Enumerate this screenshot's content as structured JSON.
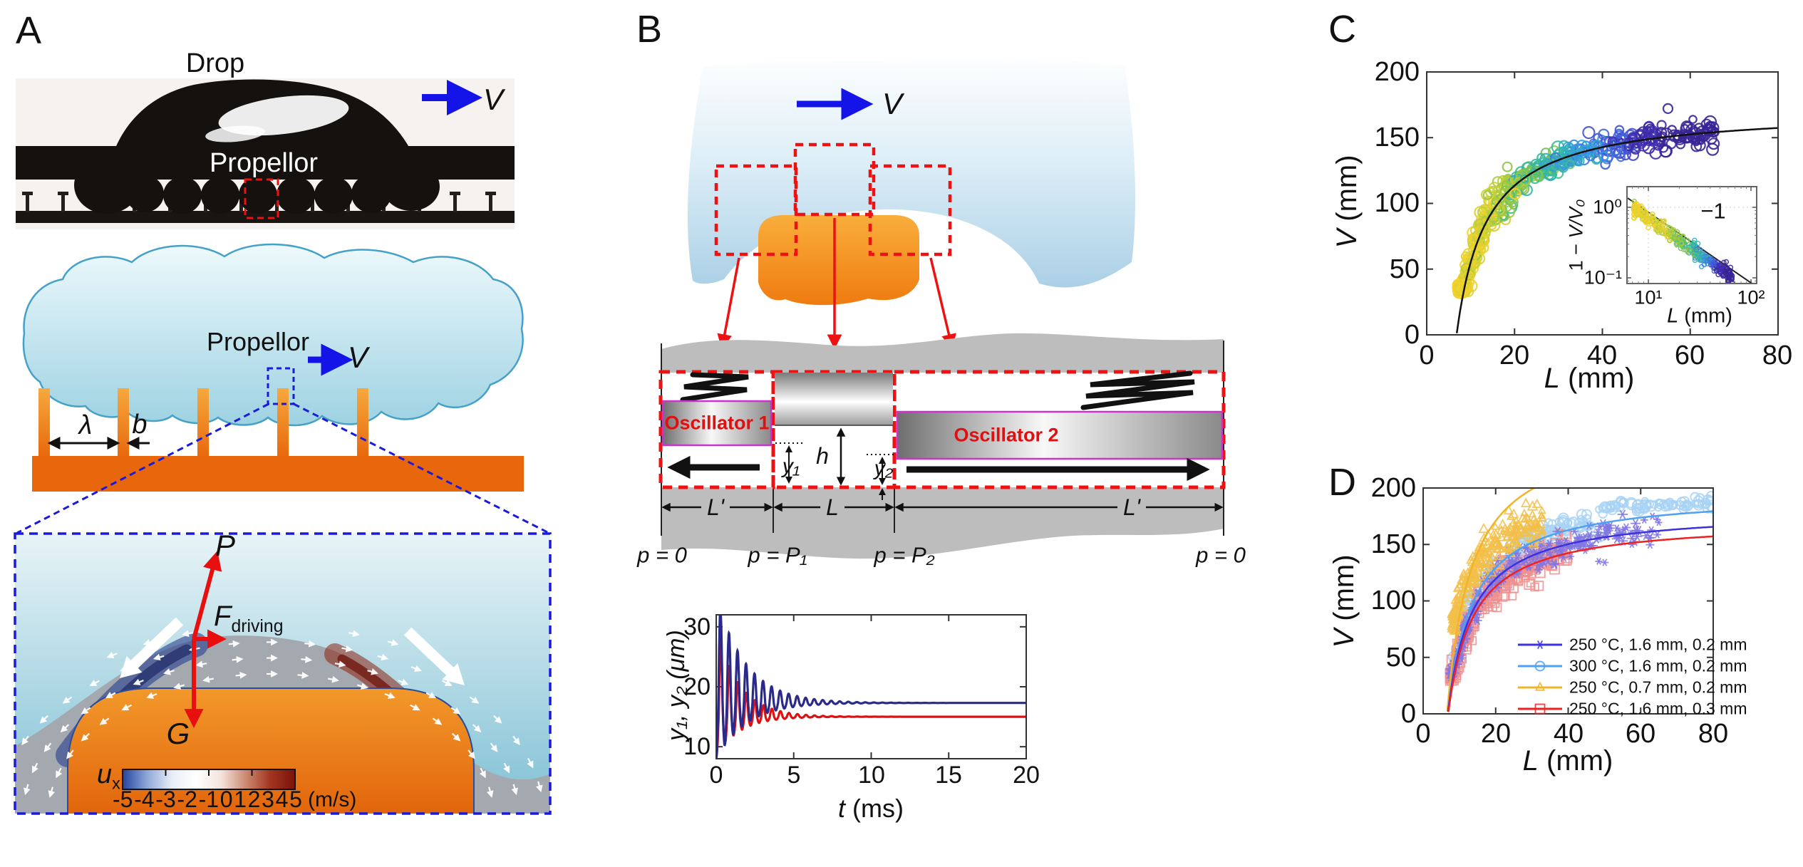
{
  "figure": {
    "colors": {
      "propellor_orange": "#e8670c",
      "propellor_orange_light": "#f6a93f",
      "drop_blue_light": "#eef9fc",
      "drop_blue": "#9ed2e2",
      "drop_stroke": "#45a1c8",
      "sky_light": "#e8f4f7",
      "sky_deep": "#7fc0d4",
      "vapor_gray": "#a4a9af",
      "flank_blue": "#2a3f8e",
      "flank_red": "#8e2212",
      "arrow_blue": "#1414e8",
      "arrow_red": "#e8100f",
      "dashed_red": "#ee1111",
      "dashed_blue": "#1a1add",
      "gray_band": "#bdbdbd",
      "magenta": "#cc33cc"
    },
    "panels": {
      "A": {
        "label": "A",
        "photo": {
          "drop": "Drop",
          "propellor": "Propellor",
          "velocity": "V"
        },
        "schematic": {
          "propellor": "Propellor",
          "velocity": "V",
          "lambda": "λ",
          "b": "b"
        },
        "forces": {
          "P": "P",
          "F": "F",
          "F_sub": "driving",
          "G": "G"
        },
        "colorbar": {
          "u": "u",
          "u_sub": "x",
          "ticks": [
            "-5",
            "-4",
            "-3",
            "-2",
            "-1",
            "0",
            "1",
            "2",
            "3",
            "4",
            "5"
          ],
          "unit": "(m/s)",
          "gradient": [
            "#24449e",
            "#8fa7d8",
            "#e8edf6",
            "#ffffff",
            "#f5e3dc",
            "#cc8a72",
            "#a33520",
            "#7a130b"
          ]
        }
      },
      "B": {
        "label": "B",
        "velocity": "V",
        "oscillator1": "Oscillator 1",
        "oscillator2": "Oscillator 2",
        "dims": {
          "L_prime_left": "L'",
          "L_mid": "L",
          "L_prime_right": "L'",
          "h": "h",
          "y1": "y₁",
          "y2": "y₂"
        },
        "pressures": [
          "p = 0",
          "p = P₁",
          "p = P₂",
          "p = 0"
        ]
      },
      "C": {
        "label": "C"
      },
      "D": {
        "label": "D"
      }
    }
  },
  "chart_data": [
    {
      "id": "oscillator_displacement_vs_time",
      "type": "line",
      "xlabel_var": "t",
      "xlabel_unit": " (ms)",
      "ylabel": "y₁, y₂ (μm)",
      "xlim": [
        0,
        20
      ],
      "ylim": [
        8,
        32
      ],
      "xticks": [
        0,
        5,
        10,
        15,
        20
      ],
      "yticks": [
        10,
        20,
        30
      ],
      "series": [
        {
          "name": "y₁",
          "color": "#2a2a8c",
          "settle_um": 17.3,
          "first_peak_um": 35,
          "period_ms": 0.55,
          "decay_ms": 1.9,
          "amp": 18,
          "neg_ratio": 0.52,
          "phase": 3.1416
        },
        {
          "name": "y₂",
          "color": "#dd1111",
          "settle_um": 15.0,
          "first_peak_um": 27,
          "period_ms": 0.55,
          "decay_ms": 1.5,
          "amp": 14.5,
          "neg_ratio": 0.45,
          "phase": 3.39
        }
      ]
    },
    {
      "id": "V_vs_L_all_drops",
      "type": "scatter",
      "xlabel_var": "L",
      "xlabel_unit": " (mm)",
      "ylabel_var": "V",
      "ylabel_unit": " (mm)",
      "xlim": [
        0,
        80
      ],
      "ylim": [
        0,
        200
      ],
      "xticks": [
        0,
        20,
        40,
        60,
        80
      ],
      "yticks": [
        0,
        50,
        100,
        150,
        200
      ],
      "fit": {
        "V0": 172,
        "Lc": 6.8
      },
      "fit_color": "#111111",
      "n_points": 620,
      "L_range": [
        7.2,
        66
      ],
      "sigma": 7.5,
      "seed": 42,
      "color_scale": [
        "#f2d12b",
        "#c8cf36",
        "#7cc44e",
        "#2fb9a0",
        "#35a0dc",
        "#3f6ce0",
        "#4433bc",
        "#3a2596"
      ],
      "trend_points": [
        [
          8,
          26
        ],
        [
          10,
          55
        ],
        [
          12,
          74
        ],
        [
          15,
          94
        ],
        [
          20,
          113
        ],
        [
          25,
          125
        ],
        [
          30,
          132
        ],
        [
          40,
          143
        ],
        [
          50,
          149
        ],
        [
          60,
          153
        ],
        [
          70,
          156
        ],
        [
          80,
          158
        ]
      ],
      "inset": {
        "xlabel_var": "L",
        "xlabel_unit": " (mm)",
        "ylabel_prefix": "1 − ",
        "ylabel_var": "V/V₀",
        "xtick_labels": [
          "10¹",
          "10²"
        ],
        "ytick_labels": [
          "10⁰",
          "10⁻¹"
        ],
        "slope_label": "−1",
        "line_k": 8.5,
        "line_L_range": [
          6.3,
          105
        ]
      }
    },
    {
      "id": "V_vs_L_conditions",
      "type": "scatter",
      "xlabel_var": "L",
      "xlabel_unit": " (mm)",
      "ylabel_var": "V",
      "ylabel_unit": " (mm)",
      "xlim": [
        0,
        80
      ],
      "ylim": [
        0,
        200
      ],
      "xticks": [
        0,
        20,
        40,
        60,
        80
      ],
      "yticks": [
        0,
        50,
        100,
        150,
        200
      ],
      "series": [
        {
          "label": "250 °C, 1.6 mm, 0.2 mm",
          "marker": "asterisk",
          "line_color": "#3c32e0",
          "marker_color": "#8277e2",
          "fit": {
            "V0": 181,
            "Lc": 6.8
          },
          "data_V0": 181,
          "data_Lc": 6.8,
          "L_range": [
            7.5,
            65
          ],
          "sigma": 7,
          "n_points": 230,
          "seed": 7
        },
        {
          "label": "300 °C, 1.6 mm, 0.2 mm",
          "marker": "circle",
          "line_color": "#4da2f5",
          "marker_color": "#a8d2f4",
          "fit": {
            "V0": 196,
            "Lc": 6.8
          },
          "data_V0": 200,
          "data_Lc": 6.8,
          "L_range": [
            7.5,
            80
          ],
          "sigma": 6.5,
          "n_points": 260,
          "seed": 8
        },
        {
          "label": "250 °C, 0.7 mm, 0.2 mm",
          "marker": "triangle",
          "line_color": "#f0b428",
          "marker_color": "#f2c04a",
          "fit": {
            "V0": 255,
            "Lc": 6.6
          },
          "data_V0": 200,
          "data_Lc": 5.0,
          "L_range": [
            8,
            33
          ],
          "sigma": 9,
          "n_points": 260,
          "seed": 9
        },
        {
          "label": "250 °C, 1.6 mm, 0.3 mm",
          "marker": "square",
          "line_color": "#ee2222",
          "marker_color": "#ef8f8f",
          "fit": {
            "V0": 172,
            "Lc": 6.9
          },
          "data_V0": 172,
          "data_Lc": 6.9,
          "L_range": [
            7.5,
            40
          ],
          "sigma": 8,
          "n_points": 270,
          "seed": 10
        }
      ]
    }
  ]
}
